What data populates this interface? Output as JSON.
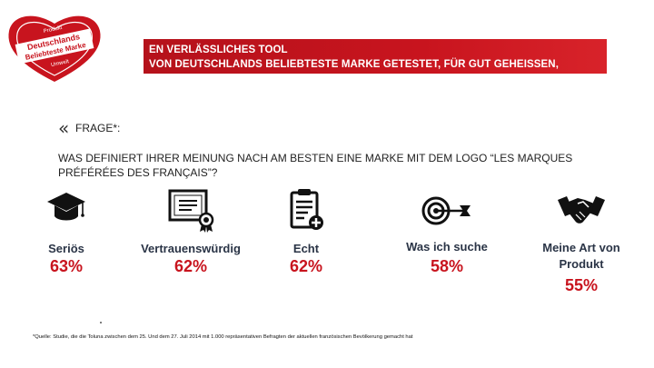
{
  "logo": {
    "top_text": "Produkt",
    "line1": "Deutschlands",
    "line2": "Beliebteste Marke",
    "bottom_text": "Umwelt",
    "color": "#c8141e"
  },
  "banner": {
    "line1": "EN VERLÄSSLICHES TOOL",
    "line2": "VON DEUTSCHLANDS BELIEBTESTE MARKE GETESTET, FÜR GUT GEHEISSEN, ANERKANNT"
  },
  "question": {
    "mark": "«",
    "label": "FRAGE*:",
    "text": "WAS DEFINIERT IHRER MEINUNG NACH AM BESTEN EINE MARKE MIT DEM LOGO “LES MARQUES PRÉFÉRÉES DES FRANÇAIS”?"
  },
  "items": [
    {
      "icon": "graduation-cap-icon",
      "label": "Seriös",
      "value": "63%"
    },
    {
      "icon": "certificate-icon",
      "label": "Vertrauenswürdig",
      "value": "62%"
    },
    {
      "icon": "clipboard-icon",
      "label": "Echt",
      "value": "62%"
    },
    {
      "icon": "target-icon",
      "label": "Was ich suche",
      "value": "58%"
    },
    {
      "icon": "handshake-icon",
      "label": "Meine Art von Produkt",
      "value": "55%"
    }
  ],
  "footnote": "*Quelle: Studie, die die Toluna zwischen dem 25. Und dem 27. Juli 2014 mit 1.000 repräsentativen Befragten der aktuellen französischen Bevölkerung gemacht hat",
  "colors": {
    "accent": "#c8141e",
    "label": "#2a3446"
  }
}
